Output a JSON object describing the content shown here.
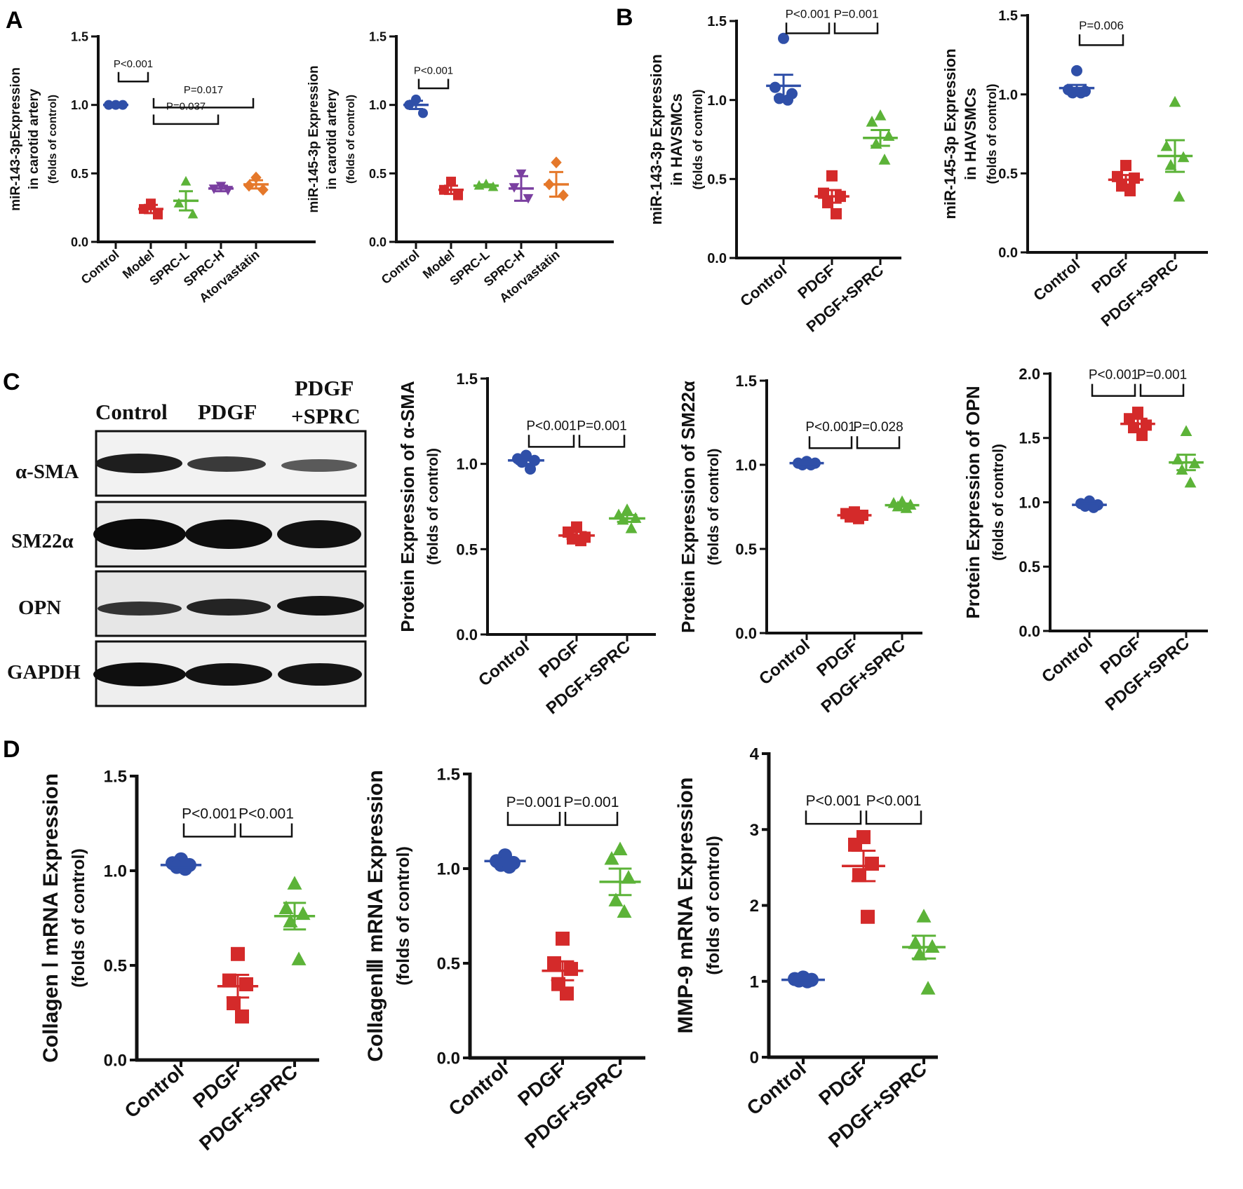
{
  "colors": {
    "Control": "#2f4fa8",
    "Model": "#d42a2a",
    "PDGF": "#d42a2a",
    "SPRC-L": "#5cb338",
    "PDGF+SPRC": "#5cb338",
    "SPRC-H": "#7a3fa0",
    "Atorvastatin": "#e5782a"
  },
  "panel_labels": [
    "A",
    "B",
    "C",
    "D"
  ],
  "blot": {
    "lanes": [
      "Control",
      "PDGF",
      "PDGF",
      "+SPRC"
    ],
    "rows": [
      "α-SMA",
      "SM22α",
      "OPN",
      "GAPDH"
    ]
  },
  "chart_data": [
    {
      "id": "A1",
      "type": "scatter",
      "ylabel": [
        "miR-143-3pExpression",
        "in carotid artery",
        "(folds of control)"
      ],
      "ylim": [
        0,
        1.5
      ],
      "yticks": [
        "0.0",
        "0.5",
        "1.0",
        "1.5"
      ],
      "categories": [
        "Control",
        "Model",
        "SPRC-L",
        "SPRC-H",
        "Atorvastatin"
      ],
      "series": [
        {
          "group": "Control",
          "marker": "circle",
          "mean": 1.0,
          "sem": 0.005,
          "points": [
            1.0,
            1.0,
            1.0
          ]
        },
        {
          "group": "Model",
          "marker": "square",
          "mean": 0.24,
          "sem": 0.03,
          "points": [
            0.28,
            0.24,
            0.2
          ]
        },
        {
          "group": "SPRC-L",
          "marker": "triangle",
          "mean": 0.3,
          "sem": 0.07,
          "points": [
            0.44,
            0.28,
            0.2
          ]
        },
        {
          "group": "SPRC-H",
          "marker": "triangle-down",
          "mean": 0.39,
          "sem": 0.02,
          "points": [
            0.41,
            0.39,
            0.38
          ]
        },
        {
          "group": "Atorvastatin",
          "marker": "diamond",
          "mean": 0.42,
          "sem": 0.03,
          "points": [
            0.47,
            0.41,
            0.38
          ]
        }
      ],
      "annotations": [
        {
          "from": 0,
          "to": 1,
          "y": 1.24,
          "text": "P<0.001"
        },
        {
          "from": 1,
          "to": 4,
          "y": 1.05,
          "text": "P=0.017"
        },
        {
          "from": 1,
          "to": 3,
          "y": 0.93,
          "text": "P=0.037"
        }
      ]
    },
    {
      "id": "A2",
      "type": "scatter",
      "ylabel": [
        "miR-145-3p Expression",
        "in carotid artery",
        "(folds of control)"
      ],
      "ylim": [
        0,
        1.5
      ],
      "yticks": [
        "0.0",
        "0.5",
        "1.0",
        "1.5"
      ],
      "categories": [
        "Control",
        "Model",
        "SPRC-L",
        "SPRC-H",
        "Atorvastatin"
      ],
      "series": [
        {
          "group": "Control",
          "marker": "circle",
          "mean": 1.0,
          "sem": 0.03,
          "points": [
            1.04,
            1.0,
            0.94
          ]
        },
        {
          "group": "Model",
          "marker": "square",
          "mean": 0.38,
          "sem": 0.03,
          "points": [
            0.44,
            0.38,
            0.34
          ]
        },
        {
          "group": "SPRC-L",
          "marker": "triangle",
          "mean": 0.41,
          "sem": 0.01,
          "points": [
            0.42,
            0.41,
            0.4
          ]
        },
        {
          "group": "SPRC-H",
          "marker": "triangle-down",
          "mean": 0.39,
          "sem": 0.09,
          "points": [
            0.5,
            0.4,
            0.32
          ]
        },
        {
          "group": "Atorvastatin",
          "marker": "diamond",
          "mean": 0.42,
          "sem": 0.09,
          "points": [
            0.58,
            0.42,
            0.34
          ]
        }
      ],
      "annotations": [
        {
          "from": 0,
          "to": 1,
          "y": 1.19,
          "text": "P<0.001"
        }
      ]
    },
    {
      "id": "B1",
      "type": "scatter",
      "ylabel": [
        "miR-143-3p Expression",
        "in HAVSMCs",
        "(folds of control)"
      ],
      "ylim": [
        0,
        1.5
      ],
      "yticks": [
        "0.0",
        "0.5",
        "1.0",
        "1.5"
      ],
      "categories": [
        "Control",
        "PDGF",
        "PDGF+SPRC"
      ],
      "series": [
        {
          "group": "Control",
          "marker": "circle",
          "mean": 1.09,
          "sem": 0.07,
          "points": [
            1.39,
            1.08,
            1.04,
            1.01,
            1.0
          ]
        },
        {
          "group": "PDGF",
          "marker": "square",
          "mean": 0.39,
          "sem": 0.04,
          "points": [
            0.52,
            0.41,
            0.39,
            0.35,
            0.28
          ]
        },
        {
          "group": "PDGF+SPRC",
          "marker": "triangle",
          "mean": 0.76,
          "sem": 0.05,
          "points": [
            0.9,
            0.86,
            0.77,
            0.72,
            0.62
          ]
        }
      ],
      "annotations": [
        {
          "from": 0,
          "to": 1,
          "y": 1.49,
          "text": "P<0.001"
        },
        {
          "from": 1,
          "to": 2,
          "y": 1.49,
          "text": "P=0.001"
        }
      ]
    },
    {
      "id": "B2",
      "type": "scatter",
      "ylabel": [
        "miR-145-3p Expression",
        "in HAVSMCs",
        "(folds of control)"
      ],
      "ylim": [
        0,
        1.5
      ],
      "yticks": [
        "0.0",
        "0.5",
        "1.0",
        "1.5"
      ],
      "categories": [
        "Control",
        "PDGF",
        "PDGF+SPRC"
      ],
      "series": [
        {
          "group": "Control",
          "marker": "circle",
          "mean": 1.04,
          "sem": 0.02,
          "points": [
            1.15,
            1.03,
            1.02,
            1.01,
            1.01
          ]
        },
        {
          "group": "PDGF",
          "marker": "square",
          "mean": 0.46,
          "sem": 0.03,
          "points": [
            0.55,
            0.48,
            0.47,
            0.42,
            0.39
          ]
        },
        {
          "group": "PDGF+SPRC",
          "marker": "triangle",
          "mean": 0.61,
          "sem": 0.1,
          "points": [
            0.95,
            0.67,
            0.6,
            0.55,
            0.35
          ]
        }
      ],
      "annotations": [
        {
          "from": 0,
          "to": 1,
          "y": 1.38,
          "text": "P=0.006"
        }
      ]
    },
    {
      "id": "C1",
      "type": "scatter",
      "ylabel": [
        "Protein Expression of α-SMA",
        "(folds of control)"
      ],
      "ylim": [
        0,
        1.5
      ],
      "yticks": [
        "0.0",
        "0.5",
        "1.0",
        "1.5"
      ],
      "categories": [
        "Control",
        "PDGF",
        "PDGF+SPRC"
      ],
      "series": [
        {
          "group": "Control",
          "marker": "circle",
          "mean": 1.02,
          "sem": 0.02,
          "points": [
            1.05,
            1.03,
            1.02,
            1.01,
            0.97
          ]
        },
        {
          "group": "PDGF",
          "marker": "square",
          "mean": 0.58,
          "sem": 0.02,
          "points": [
            0.63,
            0.6,
            0.57,
            0.56,
            0.55
          ]
        },
        {
          "group": "PDGF+SPRC",
          "marker": "triangle",
          "mean": 0.68,
          "sem": 0.02,
          "points": [
            0.73,
            0.7,
            0.68,
            0.67,
            0.62
          ]
        }
      ],
      "annotations": [
        {
          "from": 0,
          "to": 1,
          "y": 1.17,
          "text": "P<0.001"
        },
        {
          "from": 1,
          "to": 2,
          "y": 1.17,
          "text": "P=0.001"
        }
      ]
    },
    {
      "id": "C2",
      "type": "scatter",
      "ylabel": [
        "Protein Expression of SM22α",
        "(folds of control)"
      ],
      "ylim": [
        0,
        1.5
      ],
      "yticks": [
        "0.0",
        "0.5",
        "1.0",
        "1.5"
      ],
      "categories": [
        "Control",
        "PDGF",
        "PDGF+SPRC"
      ],
      "series": [
        {
          "group": "Control",
          "marker": "circle",
          "mean": 1.01,
          "sem": 0.005,
          "points": [
            1.02,
            1.01,
            1.01,
            1.0,
            1.0
          ]
        },
        {
          "group": "PDGF",
          "marker": "square",
          "mean": 0.7,
          "sem": 0.01,
          "points": [
            0.72,
            0.71,
            0.7,
            0.69,
            0.68
          ]
        },
        {
          "group": "PDGF+SPRC",
          "marker": "triangle",
          "mean": 0.76,
          "sem": 0.01,
          "points": [
            0.78,
            0.77,
            0.76,
            0.75,
            0.74
          ]
        }
      ],
      "annotations": [
        {
          "from": 0,
          "to": 1,
          "y": 1.17,
          "text": "P<0.001"
        },
        {
          "from": 1,
          "to": 2,
          "y": 1.17,
          "text": "P=0.028"
        }
      ]
    },
    {
      "id": "C3",
      "type": "scatter",
      "ylabel": [
        "Protein Expression of OPN",
        "(folds of control)"
      ],
      "ylim": [
        0,
        2.0
      ],
      "yticks": [
        "0.0",
        "0.5",
        "1.0",
        "1.5",
        "2.0"
      ],
      "categories": [
        "Control",
        "PDGF",
        "PDGF+SPRC"
      ],
      "series": [
        {
          "group": "Control",
          "marker": "circle",
          "mean": 0.98,
          "sem": 0.01,
          "points": [
            1.01,
            0.99,
            0.98,
            0.97,
            0.96
          ]
        },
        {
          "group": "PDGF",
          "marker": "square",
          "mean": 1.61,
          "sem": 0.04,
          "points": [
            1.7,
            1.65,
            1.6,
            1.58,
            1.52
          ]
        },
        {
          "group": "PDGF+SPRC",
          "marker": "triangle",
          "mean": 1.31,
          "sem": 0.06,
          "points": [
            1.55,
            1.33,
            1.3,
            1.25,
            1.15
          ]
        }
      ],
      "annotations": [
        {
          "from": 0,
          "to": 1,
          "y": 1.92,
          "text": "P<0.001"
        },
        {
          "from": 1,
          "to": 2,
          "y": 1.92,
          "text": "P=0.001"
        }
      ]
    },
    {
      "id": "D1",
      "type": "scatter",
      "ylabel": [
        "Collagen Ⅰ mRNA Expression",
        "(folds of control)"
      ],
      "ylim": [
        0,
        1.5
      ],
      "yticks": [
        "0.0",
        "0.5",
        "1.0",
        "1.5"
      ],
      "categories": [
        "Control",
        "PDGF",
        "PDGF+SPRC"
      ],
      "series": [
        {
          "group": "Control",
          "marker": "circle",
          "mean": 1.03,
          "sem": 0.01,
          "points": [
            1.06,
            1.04,
            1.03,
            1.02,
            1.01
          ]
        },
        {
          "group": "PDGF",
          "marker": "square",
          "mean": 0.39,
          "sem": 0.06,
          "points": [
            0.56,
            0.42,
            0.4,
            0.3,
            0.23
          ]
        },
        {
          "group": "PDGF+SPRC",
          "marker": "triangle",
          "mean": 0.76,
          "sem": 0.07,
          "points": [
            0.93,
            0.8,
            0.77,
            0.73,
            0.53
          ]
        }
      ],
      "annotations": [
        {
          "from": 0,
          "to": 1,
          "y": 1.25,
          "text": "P<0.001"
        },
        {
          "from": 1,
          "to": 2,
          "y": 1.25,
          "text": "P<0.001"
        }
      ]
    },
    {
      "id": "D2",
      "type": "scatter",
      "ylabel": [
        "CollagenⅢ mRNA Expression",
        "(folds of control)"
      ],
      "ylim": [
        0,
        1.5
      ],
      "yticks": [
        "0.0",
        "0.5",
        "1.0",
        "1.5"
      ],
      "categories": [
        "Control",
        "PDGF",
        "PDGF+SPRC"
      ],
      "series": [
        {
          "group": "Control",
          "marker": "circle",
          "mean": 1.04,
          "sem": 0.01,
          "points": [
            1.07,
            1.04,
            1.03,
            1.02,
            1.01
          ]
        },
        {
          "group": "PDGF",
          "marker": "square",
          "mean": 0.46,
          "sem": 0.05,
          "points": [
            0.63,
            0.5,
            0.47,
            0.39,
            0.34
          ]
        },
        {
          "group": "PDGF+SPRC",
          "marker": "triangle",
          "mean": 0.93,
          "sem": 0.07,
          "points": [
            1.1,
            1.05,
            0.95,
            0.83,
            0.77
          ]
        }
      ],
      "annotations": [
        {
          "from": 0,
          "to": 1,
          "y": 1.3,
          "text": "P=0.001"
        },
        {
          "from": 1,
          "to": 2,
          "y": 1.3,
          "text": "P=0.001"
        }
      ]
    },
    {
      "id": "D3",
      "type": "scatter",
      "ylabel": [
        "MMP-9 mRNA Expression",
        "(folds of control)"
      ],
      "ylim": [
        0,
        4
      ],
      "yticks": [
        "0",
        "1",
        "2",
        "3",
        "4"
      ],
      "categories": [
        "Control",
        "PDGF",
        "PDGF+SPRC"
      ],
      "series": [
        {
          "group": "Control",
          "marker": "circle",
          "mean": 1.02,
          "sem": 0.01,
          "points": [
            1.05,
            1.03,
            1.02,
            1.01,
            1.0
          ]
        },
        {
          "group": "PDGF",
          "marker": "square",
          "mean": 2.52,
          "sem": 0.2,
          "points": [
            2.9,
            2.8,
            2.55,
            2.4,
            1.85
          ]
        },
        {
          "group": "PDGF+SPRC",
          "marker": "triangle",
          "mean": 1.45,
          "sem": 0.15,
          "points": [
            1.85,
            1.5,
            1.45,
            1.35,
            0.9
          ]
        }
      ],
      "annotations": [
        {
          "from": 0,
          "to": 1,
          "y": 3.25,
          "text": "P<0.001"
        },
        {
          "from": 1,
          "to": 2,
          "y": 3.25,
          "text": "P<0.001"
        }
      ]
    }
  ]
}
